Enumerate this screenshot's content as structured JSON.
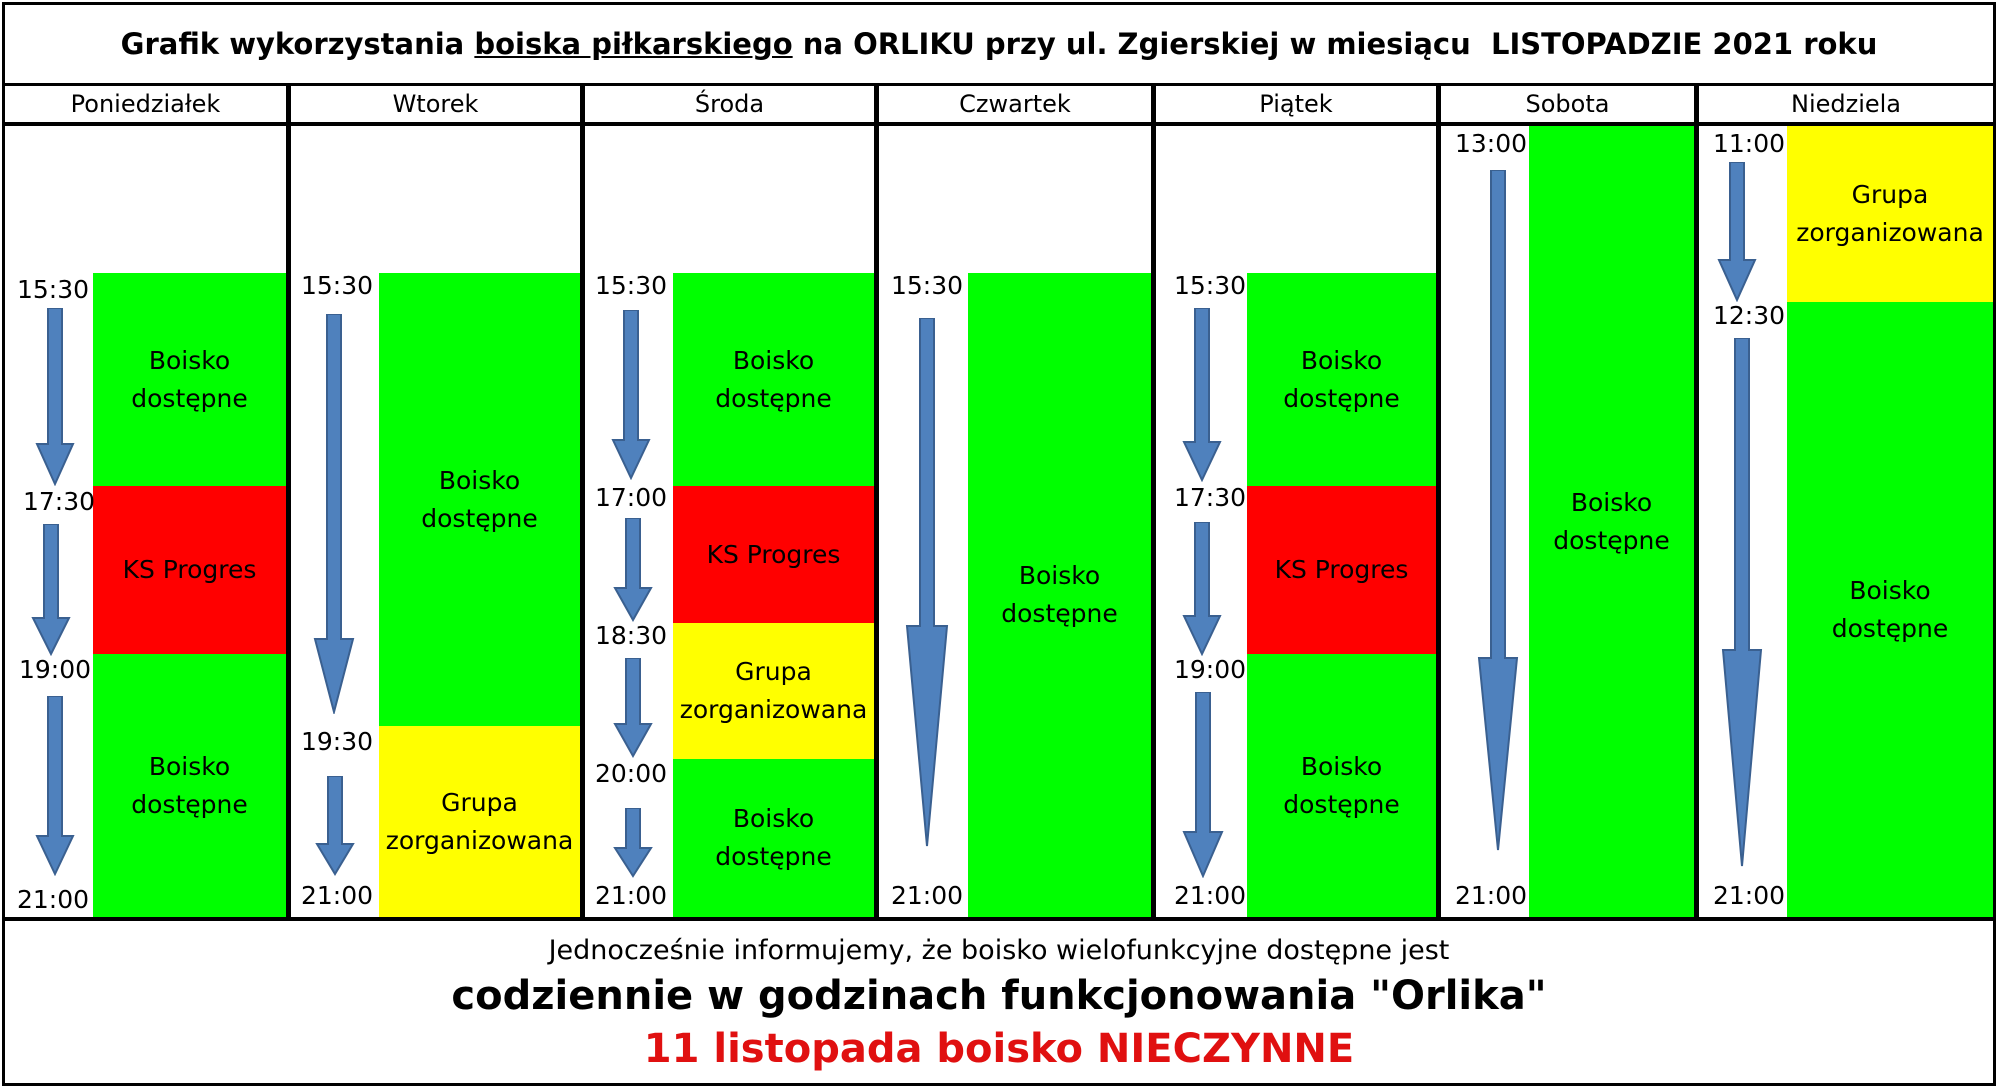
{
  "title": {
    "part1": "Grafik wykorzystania ",
    "underlined": "boiska piłkarskiego",
    "part2": " na ORLIKU przy ul. Zgierskiej w miesiącu  LISTOPADZIE 2021 roku"
  },
  "days": [
    "Poniedziałek",
    "Wtorek",
    "Środa",
    "Czwartek",
    "Piątek",
    "Sobota",
    "Niedziela"
  ],
  "schedule": {
    "monday": {
      "times": [
        "15:30",
        "17:30",
        "19:00",
        "21:00"
      ],
      "blocks": [
        "Boisko\ndostępne",
        "KS Progres",
        "Boisko\ndostępne"
      ]
    },
    "tuesday": {
      "times": [
        "15:30",
        "19:30",
        "21:00"
      ],
      "blocks": [
        "Boisko\ndostępne",
        "Grupa\nzorganizowana"
      ]
    },
    "wednesday": {
      "times": [
        "15:30",
        "17:00",
        "18:30",
        "20:00",
        "21:00"
      ],
      "blocks": [
        "Boisko\ndostępne",
        "KS Progres",
        "Grupa\nzorganizowana",
        "Boisko\ndostępne"
      ]
    },
    "thursday": {
      "times": [
        "15:30",
        "21:00"
      ],
      "blocks": [
        "Boisko\ndostępne"
      ]
    },
    "friday": {
      "times": [
        "15:30",
        "17:30",
        "19:00",
        "21:00"
      ],
      "blocks": [
        "Boisko\ndostępne",
        "KS Progres",
        "Boisko\ndostępne"
      ]
    },
    "saturday": {
      "times": [
        "13:00",
        "21:00"
      ],
      "blocks": [
        "Boisko\ndostępne"
      ]
    },
    "sunday": {
      "times": [
        "11:00",
        "12:30",
        "21:00"
      ],
      "blocks": [
        "Grupa\nzorganizowana",
        "Boisko\ndostępne"
      ]
    }
  },
  "colors": {
    "available": "#00ff00",
    "club": "#ff0000",
    "group": "#ffff00",
    "arrow": "#4f81bd",
    "notice": "#e01010"
  },
  "footer": {
    "line1": "Jednocześnie informujemy, że boisko wielofunkcyjne dostępne jest",
    "line2": "codziennie w godzinach funkcjonowania \"Orlika\"",
    "line3": "11 listopada boisko NIECZYNNE"
  }
}
